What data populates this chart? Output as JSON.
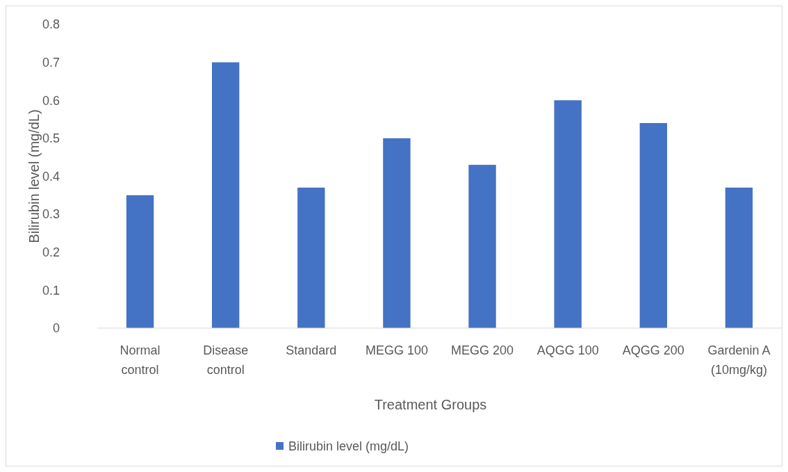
{
  "chart_data": {
    "type": "bar",
    "xlabel": "Treatment Groups",
    "ylabel": "Bilirubin level (mg/dL)",
    "categories": [
      "Normal control",
      "Disease control",
      "Standard",
      "MEGG 100",
      "MEGG 200",
      "AQGG 100",
      "AQGG 200",
      "Gardenin A (10mg/kg)"
    ],
    "series": [
      {
        "name": "Bilirubin level (mg/dL)",
        "color": "#4472c4",
        "values": [
          0.35,
          0.7,
          0.37,
          0.5,
          0.43,
          0.6,
          0.54,
          0.37
        ]
      }
    ],
    "ylim": [
      0,
      0.8
    ],
    "yticks": [
      0,
      0.1,
      0.2,
      0.3,
      0.4,
      0.5,
      0.6,
      0.7,
      0.8
    ],
    "legend": "bottom"
  }
}
